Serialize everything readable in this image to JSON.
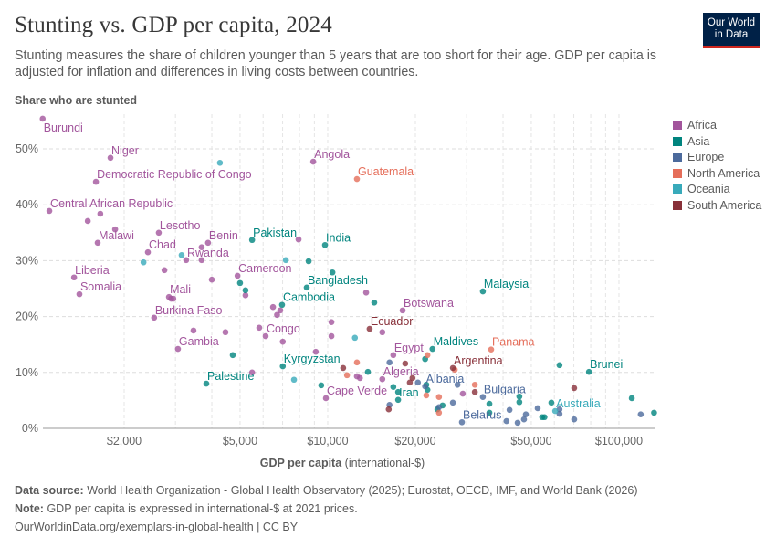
{
  "header": {
    "title": "Stunting vs. GDP per capita, 2024",
    "subtitle": "Stunting measures the share of children younger than 5 years that are too short for their age. GDP per capita is adjusted for inflation and differences in living costs between countries.",
    "logo_line1": "Our World",
    "logo_line2": "in Data"
  },
  "footer": {
    "source_label": "Data source:",
    "source_text": "World Health Organization - Global Health Observatory (2025); Eurostat, OECD, IMF, and World Bank (2026)",
    "note_label": "Note:",
    "note_text": "GDP per capita is expressed in international-$ at 2021 prices.",
    "link": "OurWorldinData.org/exemplars-in-global-health | CC BY"
  },
  "chart_data": {
    "type": "scatter",
    "title": "Stunting vs. GDP per capita, 2024",
    "xlabel_main": "GDP per capita",
    "xlabel_unit": "(international-$)",
    "ylabel": "Share who are stunted",
    "x_scale": "log",
    "xlim": [
      1050,
      133000
    ],
    "ylim": [
      0,
      55
    ],
    "grid": true,
    "legend_position": "right",
    "x_ticks": [
      {
        "value": 2000,
        "label": "$2,000"
      },
      {
        "value": 5000,
        "label": "$5,000"
      },
      {
        "value": 10000,
        "label": "$10,000"
      },
      {
        "value": 20000,
        "label": "$20,000"
      },
      {
        "value": 50000,
        "label": "$50,000"
      },
      {
        "value": 100000,
        "label": "$100,000"
      }
    ],
    "y_ticks": [
      {
        "value": 0,
        "label": "0%"
      },
      {
        "value": 10,
        "label": "10%"
      },
      {
        "value": 20,
        "label": "20%"
      },
      {
        "value": 30,
        "label": "30%"
      },
      {
        "value": 40,
        "label": "40%"
      },
      {
        "value": 50,
        "label": "50%"
      }
    ],
    "regions": [
      {
        "name": "Africa",
        "color": "#a2559c"
      },
      {
        "name": "Asia",
        "color": "#00847e"
      },
      {
        "name": "Europe",
        "color": "#4c6a9c"
      },
      {
        "name": "North America",
        "color": "#e56e5a"
      },
      {
        "name": "Oceania",
        "color": "#38aaba"
      },
      {
        "name": "South America",
        "color": "#883039"
      }
    ],
    "points": [
      {
        "entity": "Burundi",
        "gdp": 1050,
        "stunting": 55.4,
        "region": "Africa"
      },
      {
        "entity": "Niger",
        "gdp": 1795,
        "stunting": 48.4,
        "region": "Africa"
      },
      {
        "entity": "Democratic Republic of Congo",
        "gdp": 1600,
        "stunting": 44.1,
        "region": "Africa"
      },
      {
        "entity": "Central African Republic",
        "gdp": 1107,
        "stunting": 38.9,
        "region": "Africa"
      },
      {
        "gdp": 1500,
        "stunting": 37.1,
        "region": "Africa"
      },
      {
        "gdp": 1656,
        "stunting": 38.4,
        "region": "Africa"
      },
      {
        "entity": "Malawi",
        "gdp": 1622,
        "stunting": 33.2,
        "region": "Africa"
      },
      {
        "gdp": 1862,
        "stunting": 35.6,
        "region": "Africa"
      },
      {
        "entity": "Lesotho",
        "gdp": 2630,
        "stunting": 35.0,
        "region": "Africa"
      },
      {
        "entity": "Chad",
        "gdp": 2413,
        "stunting": 31.5,
        "region": "Africa"
      },
      {
        "entity": "Rwanda",
        "gdp": 3266,
        "stunting": 30.1,
        "region": "Africa"
      },
      {
        "gdp": 3690,
        "stunting": 30.1,
        "region": "Africa"
      },
      {
        "entity": "Benin",
        "gdp": 3882,
        "stunting": 33.2,
        "region": "Africa"
      },
      {
        "gdp": 3690,
        "stunting": 32.4,
        "region": "Africa"
      },
      {
        "entity": "Liberia",
        "gdp": 1346,
        "stunting": 27.0,
        "region": "Africa"
      },
      {
        "gdp": 2750,
        "stunting": 28.3,
        "region": "Africa"
      },
      {
        "entity": "Somalia",
        "gdp": 1404,
        "stunting": 24.0,
        "region": "Africa"
      },
      {
        "gdp": 4000,
        "stunting": 26.6,
        "region": "Africa"
      },
      {
        "entity": "Mali",
        "gdp": 2850,
        "stunting": 23.5,
        "region": "Africa"
      },
      {
        "gdp": 2900,
        "stunting": 23.2,
        "region": "Africa"
      },
      {
        "gdp": 2950,
        "stunting": 23.2,
        "region": "Africa"
      },
      {
        "entity": "Burkina Faso",
        "gdp": 2535,
        "stunting": 19.8,
        "region": "Africa"
      },
      {
        "gdp": 3460,
        "stunting": 17.5,
        "region": "Africa"
      },
      {
        "gdp": 4455,
        "stunting": 17.2,
        "region": "Africa"
      },
      {
        "entity": "Gambia",
        "gdp": 3060,
        "stunting": 14.2,
        "region": "Africa"
      },
      {
        "entity": "Cameroon",
        "gdp": 4900,
        "stunting": 27.3,
        "region": "Africa"
      },
      {
        "gdp": 5220,
        "stunting": 23.8,
        "region": "Africa"
      },
      {
        "gdp": 6490,
        "stunting": 21.7,
        "region": "Africa"
      },
      {
        "gdp": 6870,
        "stunting": 21.1,
        "region": "Africa"
      },
      {
        "gdp": 6700,
        "stunting": 20.3,
        "region": "Africa"
      },
      {
        "entity": "Congo",
        "gdp": 6120,
        "stunting": 16.5,
        "region": "Africa"
      },
      {
        "gdp": 5820,
        "stunting": 18.0,
        "region": "Africa"
      },
      {
        "gdp": 7010,
        "stunting": 15.5,
        "region": "Africa"
      },
      {
        "gdp": 5500,
        "stunting": 10.0,
        "region": "Africa"
      },
      {
        "gdp": 9100,
        "stunting": 13.7,
        "region": "Africa"
      },
      {
        "gdp": 7940,
        "stunting": 33.8,
        "region": "Africa"
      },
      {
        "entity": "Angola",
        "gdp": 8920,
        "stunting": 47.7,
        "region": "Africa"
      },
      {
        "entity": "Cape Verde",
        "gdp": 9860,
        "stunting": 5.4,
        "region": "Africa"
      },
      {
        "gdp": 10300,
        "stunting": 19.0,
        "region": "Africa"
      },
      {
        "gdp": 10300,
        "stunting": 16.5,
        "region": "Africa"
      },
      {
        "gdp": 13550,
        "stunting": 24.3,
        "region": "Africa"
      },
      {
        "entity": "Botswana",
        "gdp": 18080,
        "stunting": 21.1,
        "region": "Africa"
      },
      {
        "gdp": 15400,
        "stunting": 17.2,
        "region": "Africa"
      },
      {
        "entity": "Egypt",
        "gdp": 16800,
        "stunting": 13.1,
        "region": "Africa"
      },
      {
        "entity": "Algeria",
        "gdp": 15400,
        "stunting": 8.8,
        "region": "Africa"
      },
      {
        "gdp": 12600,
        "stunting": 9.3,
        "region": "Africa"
      },
      {
        "gdp": 12900,
        "stunting": 9.0,
        "region": "Africa"
      },
      {
        "gdp": 29100,
        "stunting": 6.2,
        "region": "Africa"
      },
      {
        "entity": "Pakistan",
        "gdp": 5500,
        "stunting": 33.7,
        "region": "Asia"
      },
      {
        "entity": "India",
        "gdp": 9790,
        "stunting": 32.8,
        "region": "Asia"
      },
      {
        "gdp": 8600,
        "stunting": 29.9,
        "region": "Asia"
      },
      {
        "gdp": 10380,
        "stunting": 27.9,
        "region": "Asia"
      },
      {
        "entity": "Bangladesh",
        "gdp": 8470,
        "stunting": 25.2,
        "region": "Asia"
      },
      {
        "gdp": 14450,
        "stunting": 22.5,
        "region": "Asia"
      },
      {
        "entity": "Cambodia",
        "gdp": 6970,
        "stunting": 22.1,
        "region": "Asia"
      },
      {
        "gdp": 5000,
        "stunting": 26.0,
        "region": "Asia"
      },
      {
        "gdp": 5220,
        "stunting": 24.7,
        "region": "Asia"
      },
      {
        "gdp": 4720,
        "stunting": 13.1,
        "region": "Asia"
      },
      {
        "entity": "Kyrgyzstan",
        "gdp": 7010,
        "stunting": 11.1,
        "region": "Asia"
      },
      {
        "entity": "Palestine",
        "gdp": 3830,
        "stunting": 8.0,
        "region": "Asia"
      },
      {
        "gdp": 9500,
        "stunting": 7.7,
        "region": "Asia"
      },
      {
        "entity": "Maldives",
        "gdp": 22900,
        "stunting": 14.2,
        "region": "Asia"
      },
      {
        "entity": "Malaysia",
        "gdp": 34100,
        "stunting": 24.5,
        "region": "Asia"
      },
      {
        "gdp": 21600,
        "stunting": 12.4,
        "region": "Asia"
      },
      {
        "gdp": 13740,
        "stunting": 10.1,
        "region": "Asia"
      },
      {
        "gdp": 16800,
        "stunting": 7.4,
        "region": "Asia"
      },
      {
        "gdp": 21800,
        "stunting": 7.8,
        "region": "Asia"
      },
      {
        "gdp": 22000,
        "stunting": 6.9,
        "region": "Asia"
      },
      {
        "gdp": 17450,
        "stunting": 6.5,
        "region": "Asia"
      },
      {
        "entity": "Iran",
        "gdp": 17450,
        "stunting": 5.1,
        "region": "Asia"
      },
      {
        "gdp": 23800,
        "stunting": 3.4,
        "region": "Asia"
      },
      {
        "gdp": 24800,
        "stunting": 4.1,
        "region": "Asia"
      },
      {
        "entity": "Brunei",
        "gdp": 78900,
        "stunting": 10.1,
        "region": "Asia"
      },
      {
        "gdp": 62500,
        "stunting": 11.3,
        "region": "Asia"
      },
      {
        "gdp": 35900,
        "stunting": 2.8,
        "region": "Asia"
      },
      {
        "gdp": 35900,
        "stunting": 4.4,
        "region": "Asia"
      },
      {
        "gdp": 45500,
        "stunting": 4.7,
        "region": "Asia"
      },
      {
        "gdp": 45500,
        "stunting": 5.7,
        "region": "Asia"
      },
      {
        "gdp": 58600,
        "stunting": 4.6,
        "region": "Asia"
      },
      {
        "gdp": 54500,
        "stunting": 2.0,
        "region": "Asia"
      },
      {
        "gdp": 55500,
        "stunting": 2.0,
        "region": "Asia"
      },
      {
        "gdp": 110700,
        "stunting": 5.4,
        "region": "Asia"
      },
      {
        "gdp": 132000,
        "stunting": 2.8,
        "region": "Asia"
      },
      {
        "entity": "Albania",
        "gdp": 21600,
        "stunting": 7.5,
        "region": "Europe"
      },
      {
        "gdp": 20400,
        "stunting": 8.2,
        "region": "Europe"
      },
      {
        "gdp": 16300,
        "stunting": 11.8,
        "region": "Europe"
      },
      {
        "gdp": 16300,
        "stunting": 4.2,
        "region": "Europe"
      },
      {
        "gdp": 24100,
        "stunting": 3.8,
        "region": "Europe"
      },
      {
        "gdp": 26900,
        "stunting": 4.6,
        "region": "Europe"
      },
      {
        "gdp": 27900,
        "stunting": 7.8,
        "region": "Europe"
      },
      {
        "entity": "Belarus",
        "gdp": 28900,
        "stunting": 1.1,
        "region": "Europe"
      },
      {
        "entity": "Bulgaria",
        "gdp": 34100,
        "stunting": 5.6,
        "region": "Europe"
      },
      {
        "gdp": 41100,
        "stunting": 1.3,
        "region": "Europe"
      },
      {
        "gdp": 42100,
        "stunting": 3.3,
        "region": "Europe"
      },
      {
        "gdp": 44900,
        "stunting": 1.0,
        "region": "Europe"
      },
      {
        "gdp": 47200,
        "stunting": 1.6,
        "region": "Europe"
      },
      {
        "gdp": 47900,
        "stunting": 2.5,
        "region": "Europe"
      },
      {
        "gdp": 52600,
        "stunting": 3.6,
        "region": "Europe"
      },
      {
        "gdp": 62500,
        "stunting": 3.4,
        "region": "Europe"
      },
      {
        "gdp": 62500,
        "stunting": 2.6,
        "region": "Europe"
      },
      {
        "gdp": 70200,
        "stunting": 1.6,
        "region": "Europe"
      },
      {
        "gdp": 118800,
        "stunting": 2.5,
        "region": "Europe"
      },
      {
        "entity": "Guatemala",
        "gdp": 12600,
        "stunting": 44.6,
        "region": "North America"
      },
      {
        "entity": "Panama",
        "gdp": 36400,
        "stunting": 14.1,
        "region": "North America"
      },
      {
        "gdp": 12600,
        "stunting": 11.8,
        "region": "North America"
      },
      {
        "gdp": 11650,
        "stunting": 9.5,
        "region": "North America"
      },
      {
        "gdp": 22000,
        "stunting": 13.1,
        "region": "North America"
      },
      {
        "gdp": 21800,
        "stunting": 5.9,
        "region": "North America"
      },
      {
        "gdp": 24100,
        "stunting": 5.6,
        "region": "North America"
      },
      {
        "gdp": 24100,
        "stunting": 2.8,
        "region": "North America"
      },
      {
        "gdp": 32000,
        "stunting": 7.8,
        "region": "North America"
      },
      {
        "gdp": 27300,
        "stunting": 10.5,
        "region": "North America"
      },
      {
        "gdp": 4265,
        "stunting": 47.5,
        "region": "Oceania"
      },
      {
        "gdp": 2330,
        "stunting": 29.7,
        "region": "Oceania"
      },
      {
        "gdp": 3150,
        "stunting": 31.0,
        "region": "Oceania"
      },
      {
        "gdp": 7180,
        "stunting": 30.1,
        "region": "Oceania"
      },
      {
        "gdp": 7660,
        "stunting": 8.7,
        "region": "Oceania"
      },
      {
        "gdp": 12400,
        "stunting": 16.2,
        "region": "Oceania"
      },
      {
        "entity": "Australia",
        "gdp": 60400,
        "stunting": 3.1,
        "region": "Oceania"
      },
      {
        "entity": "Ecuador",
        "gdp": 13930,
        "stunting": 17.8,
        "region": "South America"
      },
      {
        "entity": "Argentina",
        "gdp": 26900,
        "stunting": 10.8,
        "region": "South America"
      },
      {
        "gdp": 11300,
        "stunting": 10.8,
        "region": "South America"
      },
      {
        "gdp": 18450,
        "stunting": 11.6,
        "region": "South America"
      },
      {
        "gdp": 19540,
        "stunting": 9.0,
        "region": "South America"
      },
      {
        "gdp": 19140,
        "stunting": 8.2,
        "region": "South America"
      },
      {
        "gdp": 16200,
        "stunting": 3.4,
        "region": "South America"
      },
      {
        "gdp": 32000,
        "stunting": 6.5,
        "region": "South America"
      },
      {
        "gdp": 70200,
        "stunting": 7.2,
        "region": "South America"
      }
    ]
  }
}
